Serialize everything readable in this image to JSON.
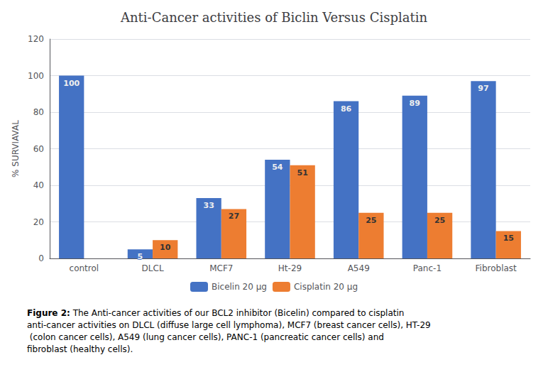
{
  "chart_data": {
    "type": "bar",
    "title": "Anti-Cancer activities of Biclin Versus Cisplatin",
    "categories": [
      "control",
      "DLCL",
      "MCF7",
      "Ht-29",
      "A549",
      "Panc-1",
      "Fibroblast"
    ],
    "series": [
      {
        "name": "Bicelin 20 μg",
        "color": "#4472C4",
        "values": [
          100,
          5,
          33,
          54,
          86,
          89,
          97
        ]
      },
      {
        "name": "Cisplatin 20 μg",
        "color": "#ED7D31",
        "values": [
          0,
          10,
          27,
          51,
          25,
          25,
          15
        ],
        "value_labels": [
          null,
          "10",
          "27",
          "51",
          "25",
          "25",
          "15"
        ]
      }
    ],
    "ylabel": "% SURVIAVAL",
    "ylim": [
      0,
      120
    ],
    "yticks": [
      0,
      20,
      40,
      60,
      80,
      100,
      120
    ],
    "grid": true,
    "legend": "bottom",
    "data_labels": true,
    "annotations": [
      "Figure 2:",
      "The Anti-cancer activities of our BCL2 inhibitor (Bicelin) compared to cisplatin anti-cancer activities on DLCL (diffuse large cell lymphoma), MCF7 (breast cancer cells), HT-29 (colon cancer cells), A549 (lung cancer cells), PANC-1 (pancreatic cancer cells) and fibroblast (healthy cells)."
    ]
  }
}
